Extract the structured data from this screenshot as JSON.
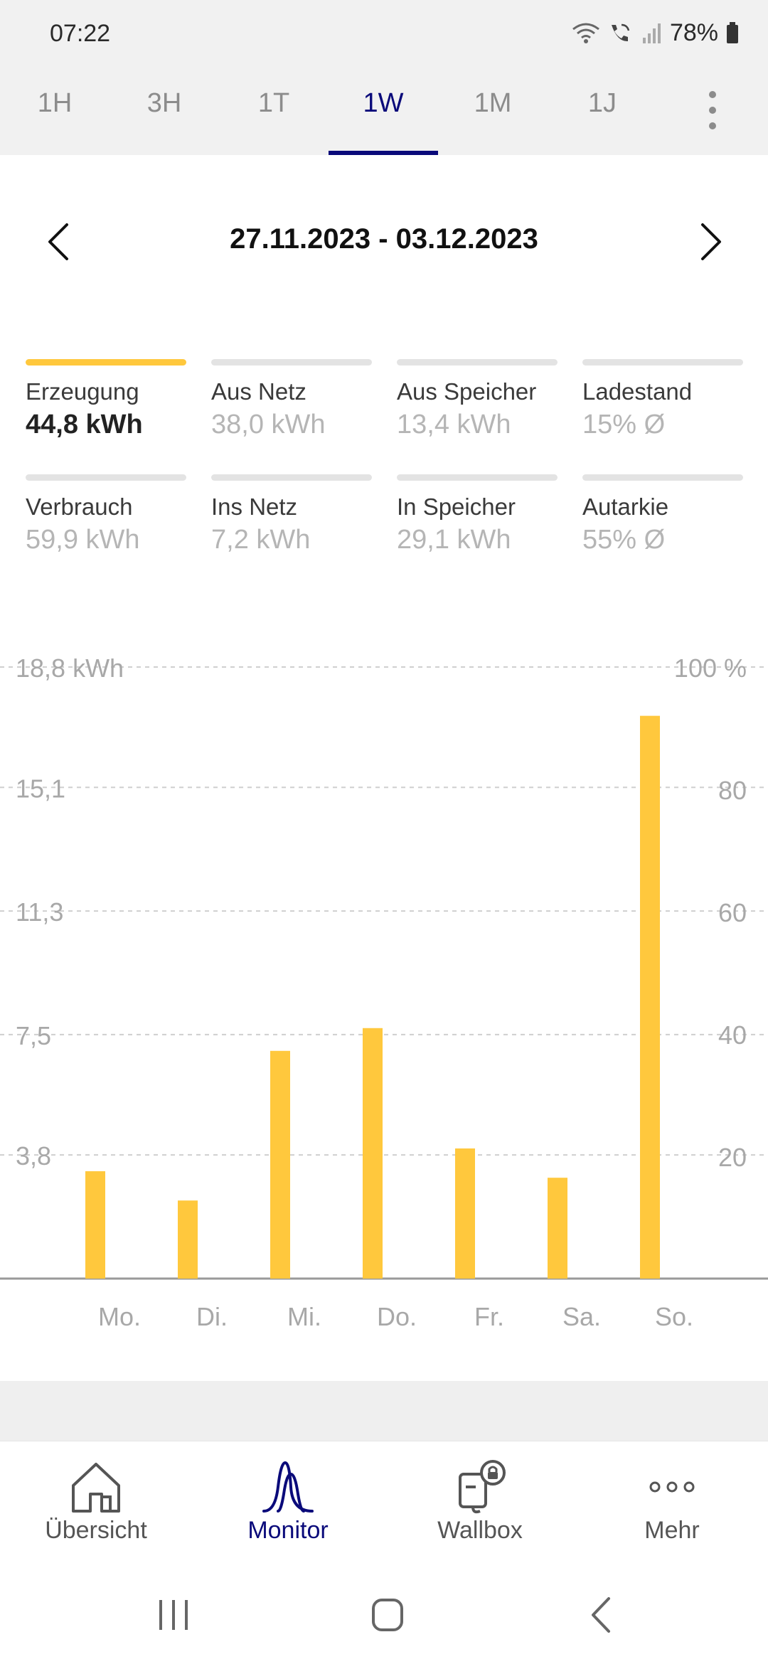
{
  "status_bar": {
    "time": "07:22",
    "battery": "78%",
    "icons": [
      "wifi-icon",
      "wifi-calling-icon",
      "signal-icon",
      "battery-icon"
    ]
  },
  "tabs": [
    {
      "label": "1H",
      "active": false
    },
    {
      "label": "3H",
      "active": false
    },
    {
      "label": "1T",
      "active": false
    },
    {
      "label": "1W",
      "active": true
    },
    {
      "label": "1M",
      "active": false
    },
    {
      "label": "1J",
      "active": false
    }
  ],
  "date_nav": {
    "range": "27.11.2023 - 03.12.2023"
  },
  "metrics": [
    {
      "label": "Erzeugung",
      "value": "44,8 kWh",
      "selected": true
    },
    {
      "label": "Aus Netz",
      "value": "38,0 kWh",
      "selected": false
    },
    {
      "label": "Aus Speicher",
      "value": "13,4 kWh",
      "selected": false
    },
    {
      "label": "Ladestand",
      "value": "15% Ø",
      "selected": false
    },
    {
      "label": "Verbrauch",
      "value": "59,9 kWh",
      "selected": false
    },
    {
      "label": "Ins Netz",
      "value": "7,2 kWh",
      "selected": false
    },
    {
      "label": "In Speicher",
      "value": "29,1 kWh",
      "selected": false
    },
    {
      "label": "Autarkie",
      "value": "55% Ø",
      "selected": false
    }
  ],
  "chart_data": {
    "type": "bar",
    "categories": [
      "Mo.",
      "Di.",
      "Mi.",
      "Do.",
      "Fr.",
      "Sa.",
      "So."
    ],
    "series": [
      {
        "values": [
          3.3,
          2.4,
          7.0,
          7.7,
          4.0,
          3.1,
          17.3
        ]
      }
    ],
    "ylim": [
      0,
      18.8
    ],
    "y_ticks": [
      "18,8 kWh",
      "15,1",
      "11,3",
      "7,5",
      "3,8"
    ],
    "y_tick_values": [
      18.8,
      15.1,
      11.3,
      7.5,
      3.8
    ],
    "y2_ticks": [
      "100 %",
      "80",
      "60",
      "40",
      "20"
    ],
    "y2_tick_values": [
      100,
      80,
      60,
      40,
      20
    ],
    "y2lim": [
      0,
      100
    ],
    "grid": true,
    "bar_color": "#ffc83d"
  },
  "bottom_nav": [
    {
      "label": "Übersicht",
      "icon": "home-icon",
      "active": false
    },
    {
      "label": "Monitor",
      "icon": "monitor-curve-icon",
      "active": true
    },
    {
      "label": "Wallbox",
      "icon": "wallbox-lock-icon",
      "active": false
    },
    {
      "label": "Mehr",
      "icon": "more-dots-icon",
      "active": false
    }
  ],
  "colors": {
    "accent": "#0a0a7a",
    "highlight": "#ffc83d",
    "muted_text": "#b5b5b5"
  }
}
